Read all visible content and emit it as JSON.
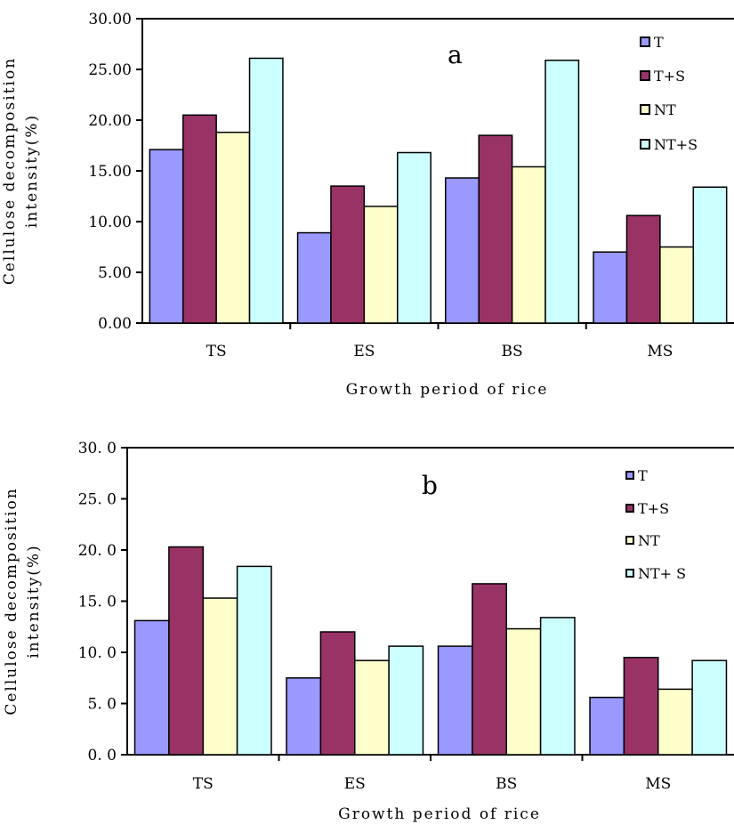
{
  "chart_data": [
    {
      "type": "bar",
      "panel_label": "a",
      "categories": [
        "TS",
        "ES",
        "BS",
        "MS"
      ],
      "series": [
        {
          "name": "T",
          "color": "#9999ff",
          "values": [
            17.1,
            8.9,
            14.3,
            7.0
          ]
        },
        {
          "name": "T+S",
          "color": "#993366",
          "values": [
            20.5,
            13.5,
            18.5,
            10.6
          ]
        },
        {
          "name": "NT",
          "color": "#ffffcc",
          "values": [
            18.8,
            11.5,
            15.4,
            7.5
          ]
        },
        {
          "name": "NT+S",
          "color": "#ccffff",
          "values": [
            26.1,
            16.8,
            25.9,
            13.4
          ]
        }
      ],
      "xlabel": "Growth period of rice",
      "ylabel": [
        "Cellulose decomposition",
        "intensity(%)"
      ],
      "ylim": [
        0,
        30
      ],
      "yticks": [
        "0.00",
        "5.00",
        "10.00",
        "15.00",
        "20.00",
        "25.00",
        "30.00"
      ],
      "grid": false,
      "legend_position": "top-right"
    },
    {
      "type": "bar",
      "panel_label": "b",
      "categories": [
        "TS",
        "ES",
        "BS",
        "MS"
      ],
      "series": [
        {
          "name": "T",
          "color": "#9999ff",
          "values": [
            13.1,
            7.5,
            10.6,
            5.6
          ]
        },
        {
          "name": "T+S",
          "color": "#993366",
          "values": [
            20.3,
            12.0,
            16.7,
            9.5
          ]
        },
        {
          "name": "NT",
          "color": "#ffffcc",
          "values": [
            15.3,
            9.2,
            12.3,
            6.4
          ]
        },
        {
          "name": "NT+ S",
          "color": "#ccffff",
          "values": [
            18.4,
            10.6,
            13.4,
            9.2
          ]
        }
      ],
      "xlabel": "Growth period of rice",
      "ylabel": [
        "Cellulose decomposition",
        "intensity(%)"
      ],
      "ylim": [
        0,
        30
      ],
      "yticks": [
        "0. 0",
        "5. 0",
        "10. 0",
        "15. 0",
        "20. 0",
        "25. 0",
        "30. 0"
      ],
      "grid": false,
      "legend_position": "top-right"
    }
  ]
}
